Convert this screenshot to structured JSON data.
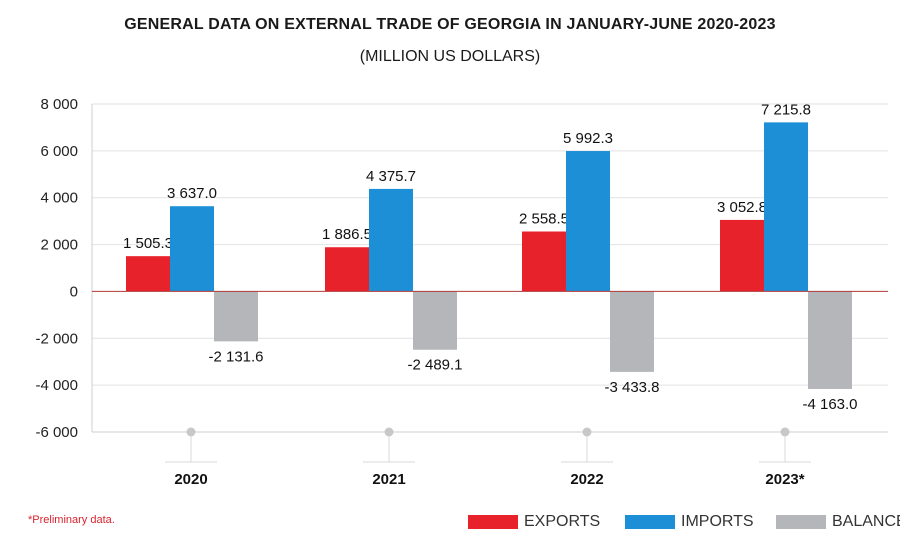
{
  "chart_data": {
    "type": "bar",
    "title": "GENERAL DATA ON EXTERNAL TRADE OF GEORGIA IN JANUARY-JUNE 2020-2023",
    "subtitle": "(MILLION US DOLLARS)",
    "categories": [
      "2020",
      "2021",
      "2022",
      "2023*"
    ],
    "series": [
      {
        "name": "EXPORTS",
        "values": [
          1505.3,
          1886.5,
          2558.5,
          3052.8
        ],
        "labels": [
          "1 505.3",
          "1 886.5",
          "2 558.5",
          "3 052.8"
        ],
        "color": "#e8222b"
      },
      {
        "name": "IMPORTS",
        "values": [
          3637.0,
          4375.7,
          5992.3,
          7215.8
        ],
        "labels": [
          "3 637.0",
          "4 375.7",
          "5 992.3",
          "7 215.8"
        ],
        "color": "#1c8fd6"
      },
      {
        "name": "BALANCE",
        "values": [
          -2131.6,
          -2489.1,
          -3433.8,
          -4163.0
        ],
        "labels": [
          "-2 131.6",
          "-2 489.1",
          "-3 433.8",
          "-4 163.0"
        ],
        "color": "#b4b6b9"
      }
    ],
    "ylim": [
      -6000,
      8000
    ],
    "yticks": [
      8000,
      6000,
      4000,
      2000,
      0,
      -2000,
      -4000,
      -6000
    ],
    "ytick_labels": [
      "8 000",
      "6 000",
      "4 000",
      "2 000",
      "0",
      "-2 000",
      "-4 000",
      "-6 000"
    ],
    "grid": true,
    "legend_position": "bottom-right"
  },
  "footnote": "*Preliminary data."
}
